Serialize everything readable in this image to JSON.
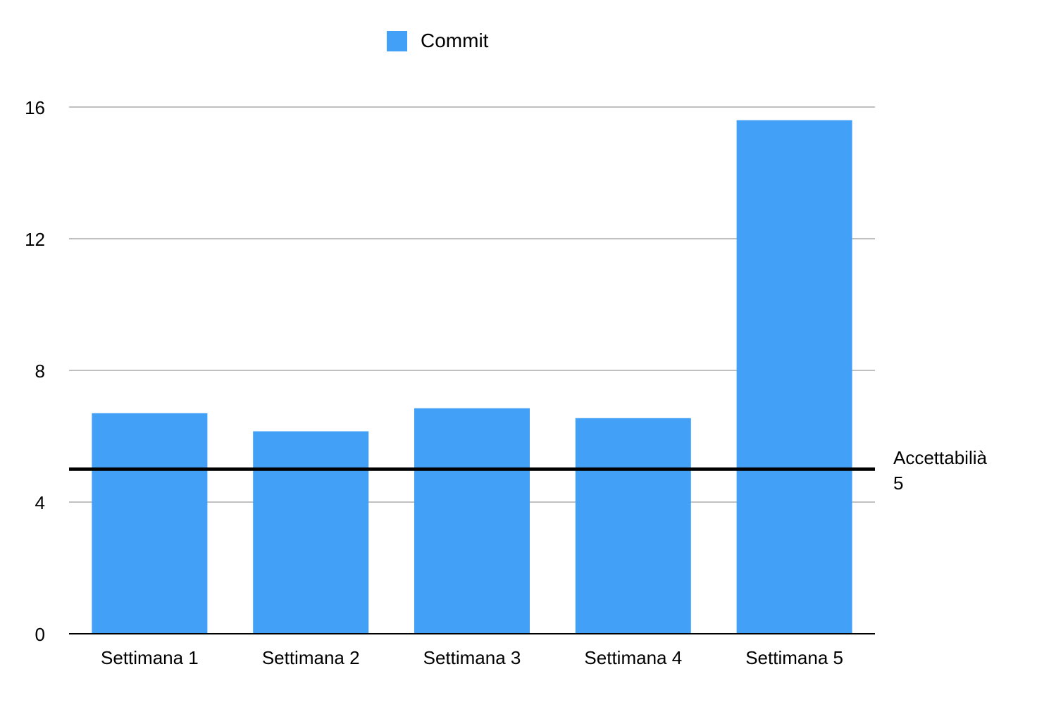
{
  "chart_data": {
    "type": "bar",
    "categories": [
      "Settimana 1",
      "Settimana 2",
      "Settimana 3",
      "Settimana 4",
      "Settimana 5"
    ],
    "series": [
      {
        "name": "Commit",
        "values": [
          6.7,
          6.15,
          6.85,
          6.55,
          15.6
        ],
        "color": "#42a1f7"
      }
    ],
    "ylim": [
      0,
      16
    ],
    "yticks": [
      0,
      4,
      8,
      12,
      16
    ],
    "ytick_labels": [
      "0",
      "4",
      "8",
      "12",
      "16"
    ],
    "grid": true,
    "legend_position": "top-center",
    "reference_line": {
      "value": 5,
      "label": "Accettabilià",
      "value_label": "5",
      "color": "#000000"
    },
    "title": "",
    "xlabel": "",
    "ylabel": ""
  }
}
